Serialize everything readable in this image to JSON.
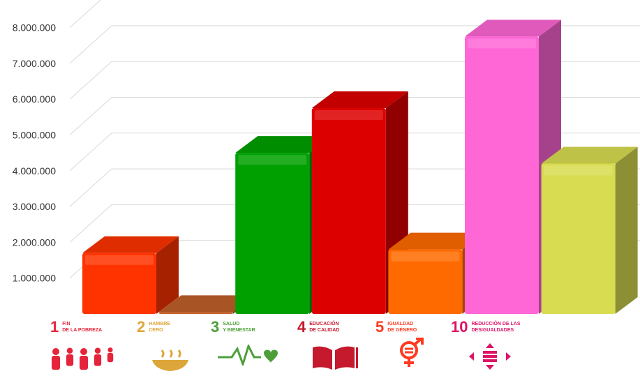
{
  "chart_data": {
    "type": "bar",
    "style": "3d",
    "categories": [
      "1 FIN DE LA POBREZA",
      "2 HAMBRE CERO",
      "3 SALUD Y BIENESTAR",
      "4 EDUCACIÓN DE CALIDAD",
      "5 IGUALDAD DE GÉNERO",
      "10 REDUCCIÓN DE LAS DESIGUALDADES",
      ""
    ],
    "values": [
      1700000,
      50000,
      4500000,
      5750000,
      1800000,
      7750000,
      4200000
    ],
    "colors": [
      "#ff3300",
      "#c0602a",
      "#00a000",
      "#dd0000",
      "#ff6a00",
      "#ff66d6",
      "#d8dc50"
    ],
    "ylim": [
      0,
      9000000
    ],
    "yticks": [
      "1.000.000",
      "2.000.000",
      "3.000.000",
      "4.000.000",
      "5.000.000",
      "6.000.000",
      "7.000.000",
      "8.000.000"
    ],
    "ytick_values": [
      1000000,
      2000000,
      3000000,
      4000000,
      5000000,
      6000000,
      7000000,
      8000000
    ],
    "grid": true,
    "title": "",
    "xlabel": "",
    "ylabel": ""
  },
  "sdg_labels": [
    {
      "number": "1",
      "line1": "FIN",
      "line2": "DE LA POBREZA",
      "color": "#e5243b",
      "icon": "family-icon"
    },
    {
      "number": "2",
      "line1": "HAMBRE",
      "line2": "CERO",
      "color": "#dda63a",
      "icon": "bowl-icon"
    },
    {
      "number": "3",
      "line1": "SALUD",
      "line2": "Y BIENESTAR",
      "color": "#4c9f38",
      "icon": "heartbeat-icon"
    },
    {
      "number": "4",
      "line1": "EDUCACIÓN",
      "line2": "DE CALIDAD",
      "color": "#c5192d",
      "icon": "book-icon"
    },
    {
      "number": "5",
      "line1": "IGUALDAD",
      "line2": "DE GÉNERO",
      "color": "#ff3a21",
      "icon": "gender-equality-icon"
    },
    {
      "number": "10",
      "line1": "REDUCCIÓN DE LAS",
      "line2": "DESIGUALDADES",
      "color": "#dd1367",
      "icon": "inequality-arrows-icon"
    }
  ]
}
